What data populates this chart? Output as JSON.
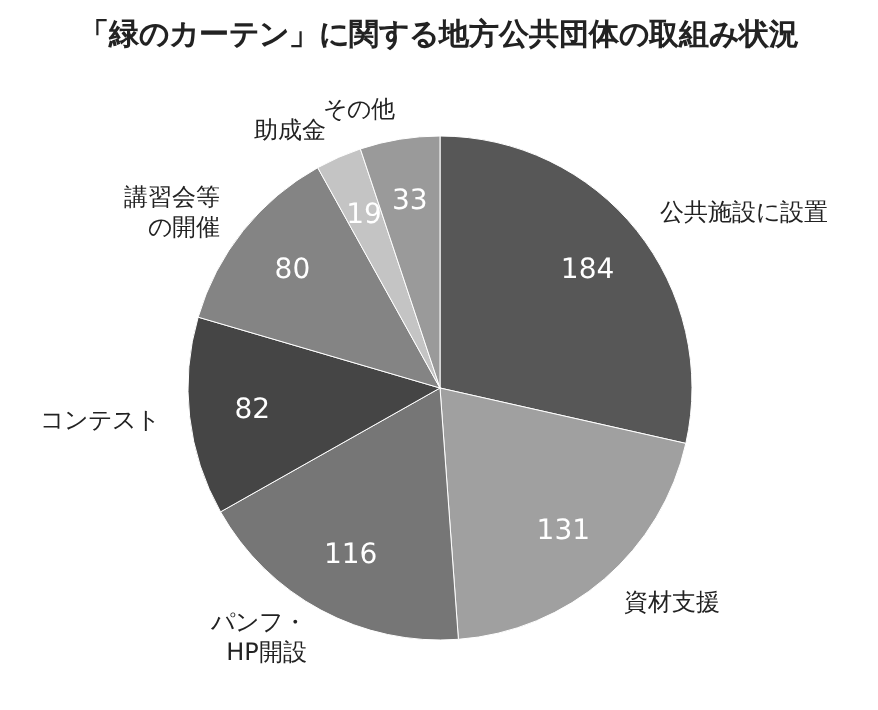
{
  "chart_data": {
    "type": "pie",
    "title": "「緑のカーテン」に関する地方公共団体の取組み状況",
    "categories": [
      "公共施設に設置",
      "資材支援",
      "パンフ・HP開設",
      "コンテスト",
      "講習会等の開催",
      "助成金",
      "その他"
    ],
    "values": [
      184,
      131,
      116,
      82,
      80,
      19,
      33
    ],
    "colors": [
      "#575757",
      "#a0a0a0",
      "#767676",
      "#454545",
      "#848484",
      "#c4c4c4",
      "#9a9a9a"
    ],
    "data_labels": true,
    "legend": false
  }
}
